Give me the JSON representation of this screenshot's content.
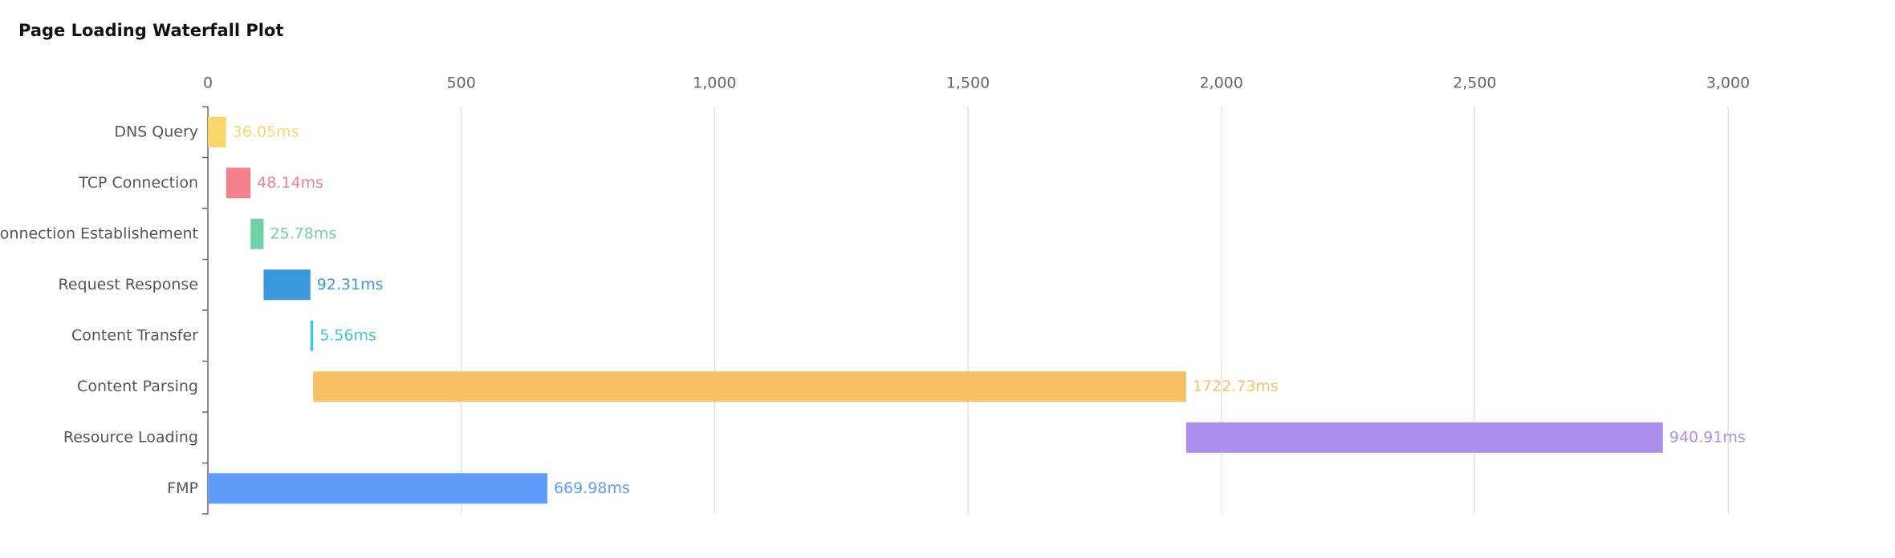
{
  "chart_data": {
    "type": "waterfall",
    "title": "Page Loading Waterfall Plot",
    "stages": [
      {
        "name": "DNS Query",
        "value": 36.05,
        "value_label": "36.05ms",
        "color": "#f8d86a"
      },
      {
        "name": "TCP Connection",
        "value": 48.14,
        "value_label": "48.14ms",
        "color": "#f4808e"
      },
      {
        "name": "onnection Establishement",
        "value": 25.78,
        "value_label": "25.78ms",
        "color": "#70d0a6"
      },
      {
        "name": "Request Response",
        "value": 92.31,
        "value_label": "92.31ms",
        "color": "#3a98dc"
      },
      {
        "name": "Content Transfer",
        "value": 5.56,
        "value_label": "5.56ms",
        "color": "#3ec8d8"
      },
      {
        "name": "Content Parsing",
        "value": 1722.73,
        "value_label": "1722.73ms",
        "color": "#f7c066"
      },
      {
        "name": "Resource Loading",
        "value": 940.91,
        "value_label": "940.91ms",
        "color": "#ab8eee"
      }
    ],
    "milestone": {
      "name": "FMP",
      "value": 669.98,
      "value_label": "669.98ms",
      "color": "#5e9dfc"
    },
    "xlim": [
      0,
      3000
    ],
    "xticks": [
      0,
      500,
      {
        "value": 1000,
        "label": "1,000"
      },
      {
        "value": 1500,
        "label": "1,500"
      },
      {
        "value": 2000,
        "label": "2,000"
      },
      {
        "value": 2500,
        "label": "2,500"
      },
      {
        "value": 3000,
        "label": "3,000"
      }
    ],
    "grid": true
  }
}
